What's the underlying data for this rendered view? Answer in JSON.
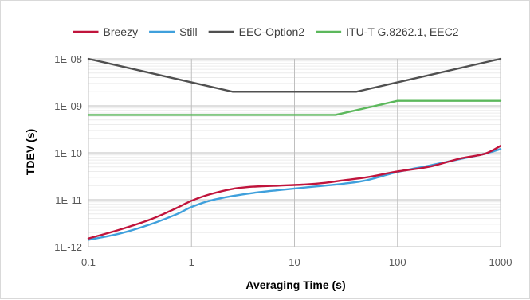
{
  "chart_data": {
    "type": "line",
    "title": "",
    "xlabel": "Averaging Time (s)",
    "ylabel": "TDEV (s)",
    "xscale": "log",
    "yscale": "log",
    "xlim": [
      0.1,
      1000
    ],
    "ylim": [
      1e-12,
      1e-08
    ],
    "xticks": [
      {
        "value": 0.1,
        "label": "0.1"
      },
      {
        "value": 1,
        "label": "1"
      },
      {
        "value": 10,
        "label": "10"
      },
      {
        "value": 100,
        "label": "100"
      },
      {
        "value": 1000,
        "label": "1000"
      }
    ],
    "yticks": [
      {
        "value": 1e-12,
        "label": "1E-12"
      },
      {
        "value": 1e-11,
        "label": "1E-11"
      },
      {
        "value": 1e-10,
        "label": "1E-10"
      },
      {
        "value": 1e-09,
        "label": "1E-09"
      },
      {
        "value": 1e-08,
        "label": "1E-08"
      }
    ],
    "grid": true,
    "minor_grid": true,
    "legend_position": "top",
    "series": [
      {
        "name": "Breezy",
        "color": "#c0143c",
        "x": [
          0.1,
          0.2,
          0.4,
          0.7,
          1,
          1.5,
          2.5,
          4,
          7,
          12,
          20,
          30,
          50,
          100,
          200,
          400,
          700,
          1000
        ],
        "y": [
          1.5e-12,
          2.3e-12,
          3.8e-12,
          6.5e-12,
          9.5e-12,
          1.3e-11,
          1.7e-11,
          1.9e-11,
          2e-11,
          2.1e-11,
          2.3e-11,
          2.6e-11,
          3e-11,
          4e-11,
          5e-11,
          7.5e-11,
          9.5e-11,
          1.4e-10
        ]
      },
      {
        "name": "Still",
        "color": "#3fa0dc",
        "x": [
          0.1,
          0.2,
          0.4,
          0.7,
          1,
          1.5,
          2.5,
          4,
          7,
          12,
          20,
          30,
          50,
          100,
          200,
          400,
          700,
          1000
        ],
        "y": [
          1.4e-12,
          1.9e-12,
          3e-12,
          4.8e-12,
          7e-12,
          9.5e-12,
          1.2e-11,
          1.4e-11,
          1.6e-11,
          1.8e-11,
          2e-11,
          2.2e-11,
          2.6e-11,
          3.9e-11,
          5.3e-11,
          7.3e-11,
          9.5e-11,
          1.2e-10
        ]
      },
      {
        "name": "EEC-Option2",
        "color": "#505050",
        "x": [
          0.1,
          2.5,
          40,
          1000
        ],
        "y": [
          1e-08,
          2e-09,
          2e-09,
          1e-08
        ]
      },
      {
        "name": "ITU-T G.8262.1, EEC2",
        "color": "#5cb85c",
        "x": [
          0.1,
          25,
          100,
          1000
        ],
        "y": [
          6.4e-10,
          6.4e-10,
          1.28e-09,
          1.28e-09
        ]
      }
    ]
  }
}
